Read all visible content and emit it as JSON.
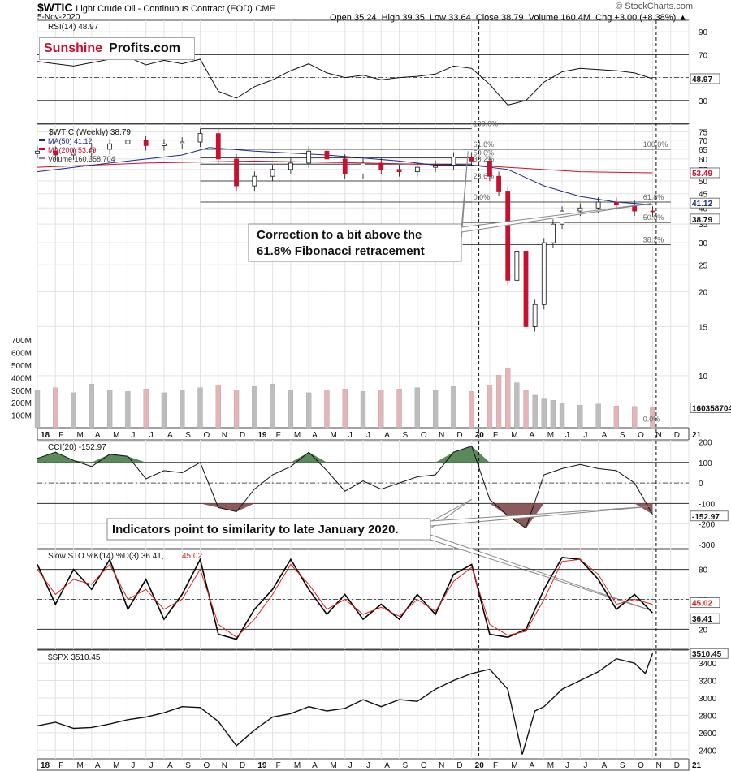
{
  "header": {
    "symbol": "$WTIC",
    "description": "Light Crude Oil - Continuous Contract (EOD)",
    "exchange": "CME",
    "date": "5-Nov-2020",
    "ohlc": "Open 35.24  High 39.35  Low 33.64  Close 38.79  Volume 160.4M  Chg +3.00 (+8.38%) ▲",
    "watermark": "© StockCharts.com"
  },
  "logo": {
    "part1": "Sunshine",
    "part2": "Profits.com",
    "color1": "#c8102e"
  },
  "time_axis": {
    "labels": [
      {
        "t": 0.0,
        "label": "18"
      },
      {
        "t": 1.0,
        "label": "F"
      },
      {
        "t": 2.0,
        "label": "M"
      },
      {
        "t": 3.0,
        "label": "A"
      },
      {
        "t": 4.0,
        "label": "M"
      },
      {
        "t": 5.0,
        "label": "J"
      },
      {
        "t": 6.0,
        "label": "J"
      },
      {
        "t": 7.0,
        "label": "A"
      },
      {
        "t": 8.0,
        "label": "S"
      },
      {
        "t": 9.0,
        "label": "O"
      },
      {
        "t": 10.0,
        "label": "N"
      },
      {
        "t": 11.0,
        "label": "D"
      },
      {
        "t": 12.0,
        "label": "19"
      },
      {
        "t": 13.0,
        "label": "F"
      },
      {
        "t": 14.0,
        "label": "M"
      },
      {
        "t": 15.0,
        "label": "A"
      },
      {
        "t": 16.0,
        "label": "M"
      },
      {
        "t": 17.0,
        "label": "J"
      },
      {
        "t": 18.0,
        "label": "J"
      },
      {
        "t": 19.0,
        "label": "A"
      },
      {
        "t": 20.0,
        "label": "S"
      },
      {
        "t": 21.0,
        "label": "O"
      },
      {
        "t": 22.0,
        "label": "N"
      },
      {
        "t": 23.0,
        "label": "D"
      },
      {
        "t": 24.0,
        "label": "20"
      },
      {
        "t": 25.0,
        "label": "F"
      },
      {
        "t": 26.0,
        "label": "M"
      },
      {
        "t": 27.0,
        "label": "A"
      },
      {
        "t": 28.0,
        "label": "M"
      },
      {
        "t": 29.0,
        "label": "J"
      },
      {
        "t": 30.0,
        "label": "J"
      },
      {
        "t": 31.0,
        "label": "A"
      },
      {
        "t": 32.0,
        "label": "S"
      },
      {
        "t": 33.0,
        "label": "O"
      },
      {
        "t": 34.0,
        "label": "N"
      },
      {
        "t": 35.0,
        "label": "D"
      },
      {
        "t": 36.0,
        "label": "21"
      }
    ],
    "event_lines": [
      24.4,
      34.2
    ]
  },
  "chart_data": [
    {
      "type": "line",
      "panel": "rsi",
      "label": "RSI(14) 48.97",
      "y_ticks": [
        "90",
        "70",
        "50",
        "30"
      ],
      "levels": [
        70,
        30
      ],
      "last_value_label": "48.97",
      "ylim": [
        10,
        100
      ],
      "x": [
        0,
        1,
        2,
        3,
        4,
        5,
        6,
        7,
        8,
        9,
        10,
        11,
        12,
        13,
        14,
        15,
        16,
        17,
        18,
        19,
        20,
        21,
        22,
        23,
        24,
        25,
        26,
        27,
        28,
        29,
        30,
        31,
        32,
        33,
        34
      ],
      "values": [
        64,
        62,
        60,
        63,
        66,
        68,
        61,
        65,
        62,
        66,
        38,
        32,
        42,
        48,
        56,
        62,
        54,
        50,
        52,
        48,
        50,
        51,
        53,
        60,
        58,
        44,
        26,
        30,
        46,
        55,
        58,
        57,
        56,
        54,
        49
      ]
    },
    {
      "type": "candlestick",
      "panel": "price",
      "label": "$WTIC (Weekly) 38.79",
      "legend": [
        {
          "name": "MA(50) 41.12",
          "color": "#1c2a8c"
        },
        {
          "name": "MA(200) 53.49",
          "color": "#c8102e"
        },
        {
          "name": "Volume 160,358,704",
          "color": "#888888"
        }
      ],
      "y_scale": "log",
      "y_ticks": [
        "75",
        "70",
        "65",
        "60",
        "55",
        "50",
        "45",
        "40",
        "35",
        "30",
        "25",
        "20",
        "15",
        "10"
      ],
      "ylim": [
        6.5,
        80
      ],
      "x": [
        0,
        1,
        2,
        3,
        4,
        5,
        6,
        7,
        8,
        9,
        10,
        11,
        12,
        13,
        14,
        15,
        16,
        17,
        18,
        19,
        20,
        21,
        22,
        23,
        24,
        25,
        25.5,
        26,
        26.5,
        27,
        27.5,
        28,
        28.5,
        29,
        30,
        31,
        32,
        33,
        34
      ],
      "close": [
        64,
        62,
        63,
        65,
        68,
        70,
        67,
        68,
        69,
        74,
        60,
        48,
        52,
        55,
        58,
        64,
        60,
        53,
        58,
        55,
        54,
        56,
        57,
        61,
        59,
        52,
        46,
        22,
        28,
        15,
        18,
        30,
        35,
        39,
        40,
        42,
        41,
        39,
        38.79
      ],
      "ma50": {
        "x": [
          0,
          4,
          8,
          9.5,
          12,
          16,
          20,
          22,
          24,
          26,
          28,
          30,
          32,
          34
        ],
        "values": [
          54,
          58,
          62,
          66,
          64,
          62,
          59,
          57,
          57,
          55,
          48,
          44,
          42,
          41.12
        ]
      },
      "ma200": {
        "x": [
          0,
          6,
          12,
          18,
          24,
          30,
          34
        ],
        "values": [
          56,
          58,
          59,
          58,
          57,
          54,
          53.49
        ]
      },
      "ma50_value_label": "41.12",
      "ma200_value_label": "53.49",
      "close_value_label": "38.79",
      "fib_sets": [
        {
          "x0": 9.0,
          "x1": 24.0,
          "levels": [
            {
              "label": "100.0%",
              "value": 77
            },
            {
              "label": "61.8%",
              "value": 65
            },
            {
              "label": "50.0%",
              "value": 60.5
            },
            {
              "label": "38.2%",
              "value": 57.5
            },
            {
              "label": "23.6%",
              "value": 50
            },
            {
              "label": "0.0%",
              "value": 42
            }
          ]
        },
        {
          "x0": 23.5,
          "x1": 35.0,
          "levels": [
            {
              "label": "100.0%",
              "value": 65
            },
            {
              "label": "61.8%",
              "value": 42
            },
            {
              "label": "50.0%",
              "value": 35.5
            },
            {
              "label": "38.2%",
              "value": 29.5
            },
            {
              "label": "0.0%",
              "value": 6.7
            }
          ]
        }
      ],
      "annotation": "Correction to a bit above the\n61.8% Fibonacci retracement",
      "volume_ticks": [
        "700M",
        "600M",
        "500M",
        "400M",
        "300M",
        "200M",
        "100M"
      ],
      "volume_value_label": "160358704",
      "volume": [
        300,
        320,
        280,
        350,
        300,
        290,
        310,
        280,
        300,
        320,
        340,
        300,
        330,
        350,
        300,
        280,
        300,
        310,
        290,
        300,
        310,
        320,
        300,
        330,
        290,
        340,
        420,
        480,
        360,
        300,
        260,
        230,
        220,
        200,
        180,
        190,
        175,
        170,
        160
      ]
    },
    {
      "type": "line",
      "panel": "cci",
      "label": "CCI(20) -152.97",
      "y_ticks": [
        "200",
        "100",
        "0",
        "-100",
        "-200",
        "-300"
      ],
      "levels": [
        100,
        0,
        -100
      ],
      "last_value_label": "-152.97",
      "ylim": [
        -320,
        210
      ],
      "x": [
        0,
        1,
        2,
        3,
        4,
        5,
        6,
        7,
        8,
        9,
        10,
        11,
        12,
        13,
        14,
        15,
        16,
        17,
        18,
        19,
        20,
        21,
        22,
        23,
        24,
        25,
        26,
        27,
        28,
        29,
        30,
        31,
        32,
        33,
        34
      ],
      "values": [
        120,
        150,
        110,
        80,
        140,
        130,
        20,
        60,
        50,
        100,
        -120,
        -140,
        -30,
        40,
        80,
        150,
        60,
        -40,
        10,
        -30,
        0,
        30,
        40,
        150,
        180,
        -80,
        -160,
        -220,
        40,
        70,
        90,
        70,
        60,
        0,
        -152.97
      ],
      "annotation": "Indicators point to similarity to late January 2020."
    },
    {
      "type": "line",
      "panel": "stoch",
      "label": "Slow STO %K(14) %D(3) 36.41, 45.02",
      "label_main": "Slow STO %K(14) %D(3) 36.41,",
      "label_d": "45.02",
      "y_ticks": [
        "80",
        "50",
        "20"
      ],
      "levels": [
        80,
        50,
        20
      ],
      "ylim": [
        0,
        100
      ],
      "x": [
        0,
        1,
        2,
        3,
        4,
        5,
        6,
        7,
        8,
        9,
        10,
        11,
        12,
        13,
        14,
        15,
        16,
        17,
        18,
        19,
        20,
        21,
        22,
        23,
        24,
        25,
        26,
        27,
        28,
        29,
        30,
        31,
        32,
        33,
        34
      ],
      "series": [
        {
          "name": "%K",
          "color": "#000000",
          "values": [
            85,
            45,
            80,
            60,
            90,
            40,
            70,
            30,
            55,
            90,
            15,
            10,
            40,
            60,
            90,
            60,
            35,
            55,
            30,
            45,
            30,
            55,
            35,
            75,
            85,
            15,
            12,
            20,
            60,
            92,
            90,
            70,
            40,
            55,
            36.41
          ]
        },
        {
          "name": "%D",
          "color": "#e0201a",
          "values": [
            80,
            55,
            70,
            65,
            85,
            50,
            60,
            40,
            50,
            80,
            25,
            12,
            30,
            55,
            85,
            65,
            40,
            50,
            35,
            42,
            33,
            50,
            38,
            68,
            82,
            25,
            14,
            18,
            50,
            88,
            90,
            75,
            45,
            50,
            45.02
          ]
        }
      ],
      "last_k_label": "36.41",
      "last_d_label": "45.02"
    },
    {
      "type": "line",
      "panel": "spx",
      "label": "$SPX 3510.45",
      "y_ticks": [
        "3400",
        "3200",
        "3000",
        "2800",
        "2600",
        "2400"
      ],
      "ylim": [
        2300,
        3550
      ],
      "last_value_label": "3510.45",
      "x": [
        0,
        1,
        2,
        3,
        4,
        5,
        6,
        7,
        8,
        9,
        10,
        11,
        12,
        13,
        14,
        15,
        16,
        17,
        18,
        19,
        20,
        21,
        22,
        23,
        24,
        25,
        26,
        26.8,
        27.5,
        28,
        29,
        30,
        31,
        32,
        33,
        33.6,
        34
      ],
      "values": [
        2680,
        2720,
        2650,
        2660,
        2700,
        2750,
        2780,
        2830,
        2900,
        2890,
        2730,
        2450,
        2630,
        2780,
        2820,
        2900,
        2850,
        2880,
        2980,
        2900,
        2980,
        2960,
        3100,
        3200,
        3280,
        3330,
        3100,
        2350,
        2850,
        2900,
        3100,
        3200,
        3300,
        3450,
        3400,
        3280,
        3510.45
      ]
    }
  ]
}
